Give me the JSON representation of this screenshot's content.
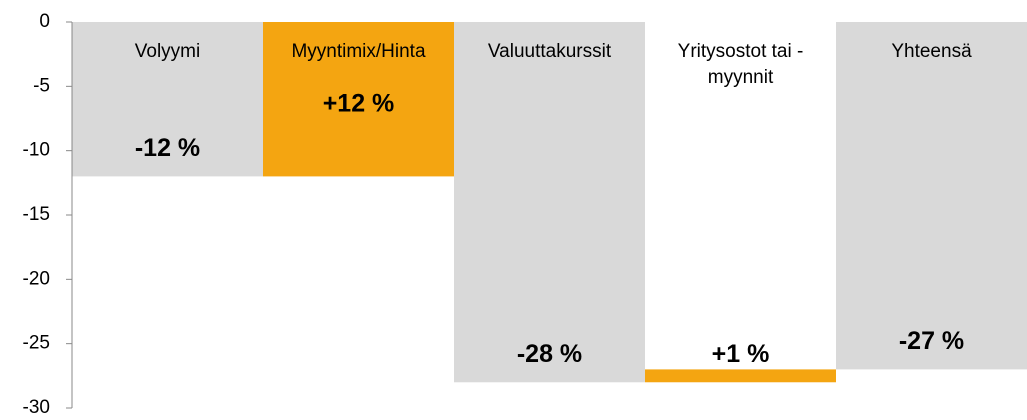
{
  "chart_data": {
    "type": "waterfall",
    "categories": [
      "Volyymi",
      "Myyntimix/Hinta",
      "Valuuttakurssit",
      "Yritysostot tai - myynnit",
      "Yhteensä"
    ],
    "values": [
      -12,
      12,
      -28,
      1,
      -27
    ],
    "value_labels": [
      "-12 %",
      "+12 %",
      "-28 %",
      "+1 %",
      "-27 %"
    ],
    "colors": [
      "#d9d9d9",
      "#f4a511",
      "#d9d9d9",
      "#f4a511",
      "#d9d9d9"
    ],
    "ylim": [
      -30,
      0
    ],
    "yticks": [
      0,
      -5,
      -10,
      -15,
      -20,
      -25,
      -30
    ]
  }
}
